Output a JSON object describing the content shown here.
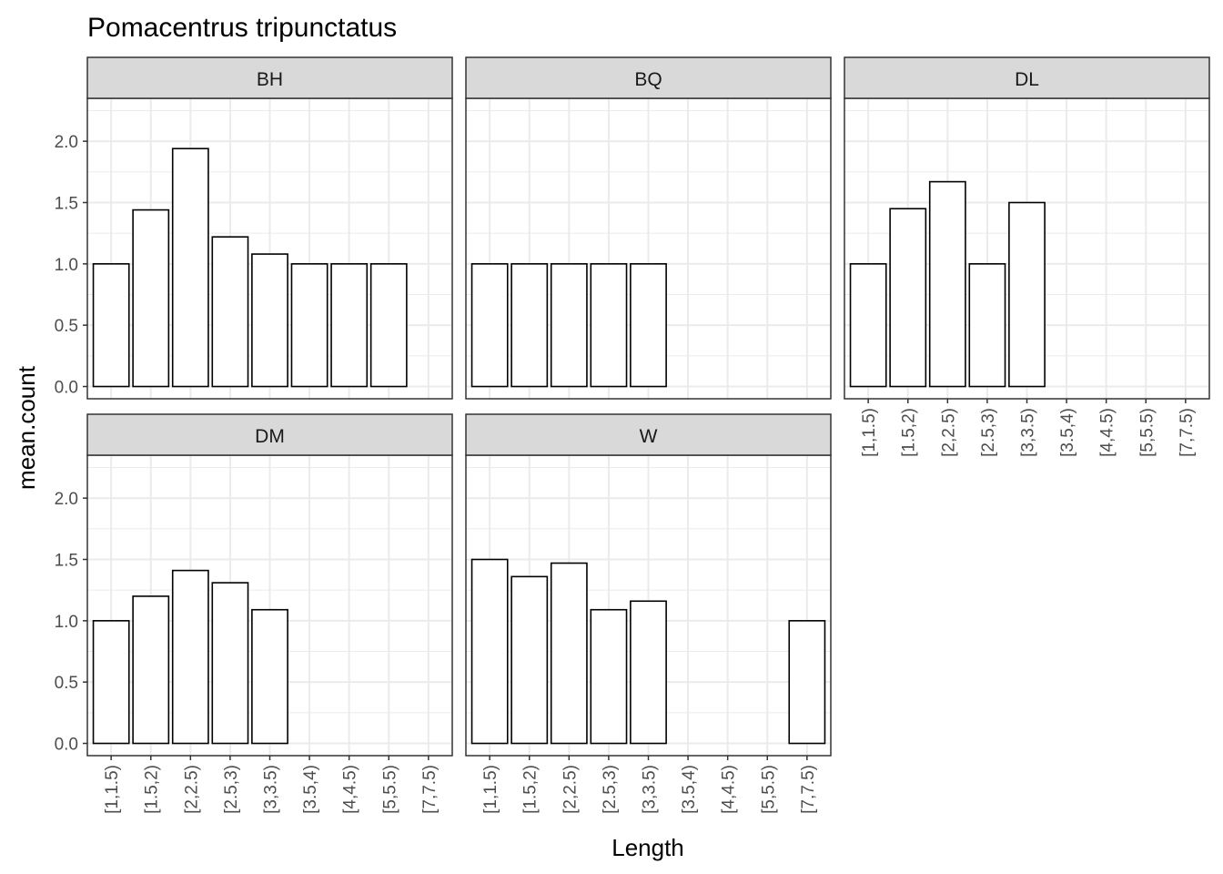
{
  "chart_data": {
    "type": "bar",
    "title": "Pomacentrus tripunctatus",
    "xlabel": "Length",
    "ylabel": "mean.count",
    "ylim": [
      -0.1,
      2.35
    ],
    "y_ticks": [
      "0.0",
      "0.5",
      "1.0",
      "1.5",
      "2.0"
    ],
    "y_tick_values": [
      0,
      0.5,
      1,
      1.5,
      2
    ],
    "categories": [
      "[1,1.5)",
      "[1.5,2)",
      "[2,2.5)",
      "[2.5,3)",
      "[3,3.5)",
      "[3.5,4)",
      "[4,4.5)",
      "[5,5.5)",
      "[7,7.5)"
    ],
    "grid": true,
    "colors": {
      "bar_fill": "#ffffff",
      "bar_stroke": "#000000",
      "strip_fill": "#d9d9d9",
      "grid": "#ebebeb",
      "panel_border": "#333333"
    },
    "series": [
      {
        "name": "BH",
        "values": [
          1.0,
          1.44,
          1.94,
          1.22,
          1.08,
          1.0,
          1.0,
          1.0,
          null
        ]
      },
      {
        "name": "BQ",
        "values": [
          1.0,
          1.0,
          1.0,
          1.0,
          1.0,
          null,
          null,
          null,
          null
        ]
      },
      {
        "name": "DL",
        "values": [
          1.0,
          1.45,
          1.67,
          1.0,
          1.5,
          null,
          null,
          null,
          null
        ]
      },
      {
        "name": "DM",
        "values": [
          1.0,
          1.2,
          1.41,
          1.31,
          1.09,
          null,
          null,
          null,
          null
        ]
      },
      {
        "name": "W",
        "values": [
          1.5,
          1.36,
          1.47,
          1.09,
          1.16,
          null,
          null,
          null,
          1.0
        ]
      }
    ]
  }
}
